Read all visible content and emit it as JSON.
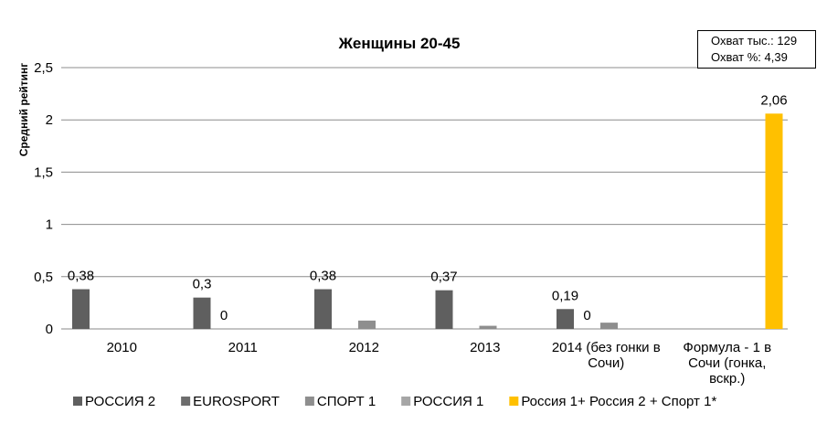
{
  "chart_data": {
    "type": "bar",
    "title": "Женщины 20-45",
    "ylabel": "Средний рейтинг",
    "xlabel": "",
    "ylim": [
      0,
      2.5
    ],
    "yticks": [
      "0",
      "0,5",
      "1",
      "1,5",
      "2",
      "2,5"
    ],
    "ytick_values": [
      0,
      0.5,
      1,
      1.5,
      2,
      2.5
    ],
    "grid": true,
    "legend_position": "bottom",
    "categories": [
      [
        "2010"
      ],
      [
        "2011"
      ],
      [
        "2012"
      ],
      [
        "2013"
      ],
      [
        "2014 (без гонки в",
        "Сочи)"
      ],
      [
        "Формула - 1 в",
        "Сочи (гонка,",
        "вскр.)"
      ]
    ],
    "series": [
      {
        "name": "РОССИЯ 2",
        "color": "#5f5f5f",
        "values": [
          0.38,
          0.3,
          0.38,
          0.37,
          0.19,
          null
        ],
        "labels": [
          "0,38",
          "0,3",
          "0,38",
          "0,37",
          "0,19",
          null
        ]
      },
      {
        "name": "EUROSPORT",
        "color": "#6d6d6d",
        "values": [
          null,
          0,
          null,
          null,
          0,
          null
        ],
        "labels": [
          null,
          "0",
          null,
          null,
          "0",
          null
        ]
      },
      {
        "name": "СПОРТ 1",
        "color": "#8e8e8e",
        "values": [
          null,
          null,
          0.08,
          0.03,
          0.06,
          null
        ],
        "labels": [
          null,
          null,
          null,
          null,
          null,
          null
        ]
      },
      {
        "name": "РОССИЯ 1",
        "color": "#a6a6a6",
        "values": [
          null,
          null,
          null,
          null,
          null,
          null
        ],
        "labels": [
          null,
          null,
          null,
          null,
          null,
          null
        ]
      },
      {
        "name": "Россия 1+ Россия 2 + Спорт 1*",
        "color": "#ffc000",
        "values": [
          null,
          null,
          null,
          null,
          null,
          2.06
        ],
        "labels": [
          null,
          null,
          null,
          null,
          null,
          "2,06"
        ]
      }
    ]
  },
  "info_box": {
    "line1": "Охват тыс.: 129",
    "line2": "Охват %: 4,39"
  }
}
